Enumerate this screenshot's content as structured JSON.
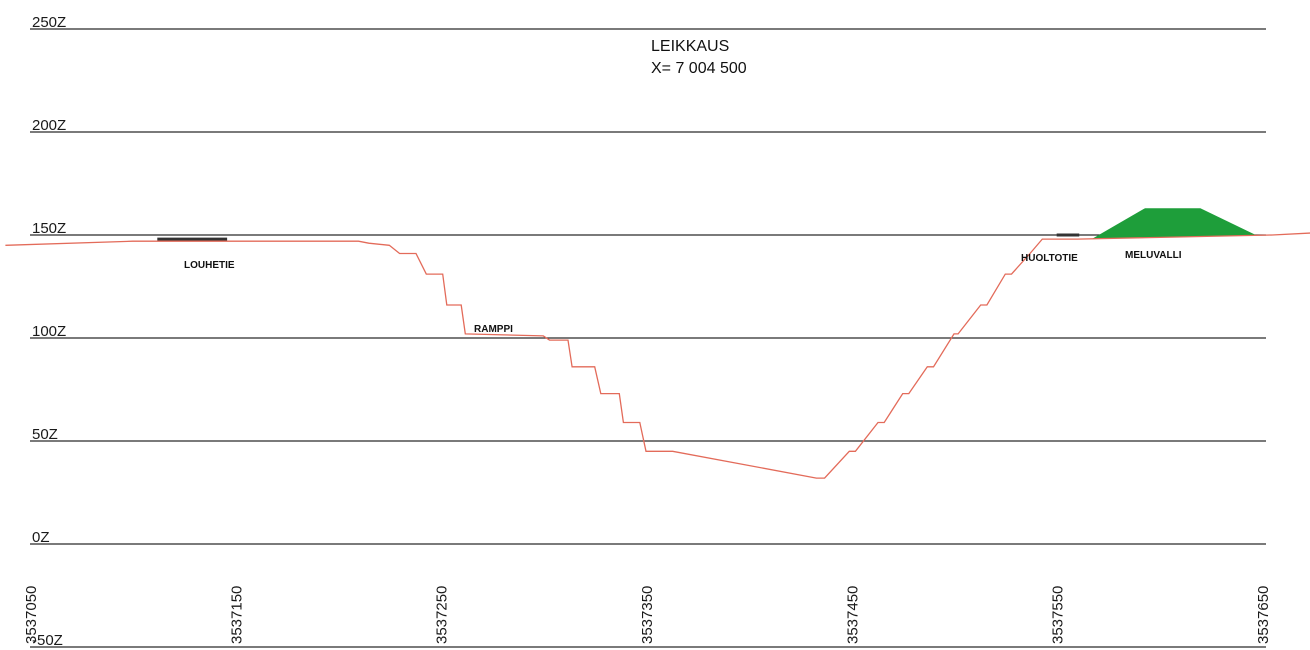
{
  "title": {
    "line1": "LEIKKAUS",
    "line2": "X= 7 004 500"
  },
  "colors": {
    "grid": "#2b2b2b",
    "profile": "#e36b5a",
    "noise_barrier": "#1e9e3a",
    "road": "#333333"
  },
  "chart_data": {
    "type": "line",
    "x_axis_labels": [
      "3537050",
      "3537150",
      "3537250",
      "3537350",
      "3537450",
      "3537550",
      "3537650"
    ],
    "x_range": [
      3537050,
      3537650
    ],
    "z_axis_labels": [
      "250Z",
      "200Z",
      "150Z",
      "100Z",
      "50Z",
      "0Z",
      "-50Z"
    ],
    "z_levels": [
      250,
      200,
      150,
      100,
      50,
      0,
      -50
    ],
    "z_range": [
      -50,
      250
    ],
    "profile": {
      "x": [
        3537038,
        3537100,
        3537190,
        3537200,
        3537210,
        3537215,
        3537225,
        3537230,
        3537238,
        3537243,
        3537251,
        3537253,
        3537260,
        3537262,
        3537300,
        3537303,
        3537312,
        3537314,
        3537325,
        3537328,
        3537337,
        3537339,
        3537347,
        3537350,
        3537363,
        3537433,
        3537437,
        3537449,
        3537452,
        3537463,
        3537466,
        3537475,
        3537478,
        3537487,
        3537490,
        3537500,
        3537502,
        3537513,
        3537516,
        3537525,
        3537528,
        3537537,
        3537543,
        3537560,
        3537655,
        3537675
      ],
      "z": [
        145,
        147,
        147,
        147,
        147,
        146,
        145,
        141,
        141,
        131,
        131,
        116,
        116,
        102,
        101,
        99,
        99,
        86,
        86,
        73,
        73,
        59,
        59,
        45,
        45,
        32,
        32,
        45,
        45,
        59,
        59,
        73,
        73,
        86,
        86,
        102,
        102,
        116,
        116,
        131,
        131,
        141,
        148,
        148,
        150,
        151
      ]
    },
    "annotations": [
      "LOUHETIE",
      "RAMPPI",
      "HUOLTOTIE",
      "MELUVALLI"
    ],
    "noise_barrier": {
      "x": [
        3537567,
        3537593,
        3537620,
        3537647,
        3537567
      ],
      "z": [
        148,
        163,
        163,
        150,
        148
      ]
    },
    "roads": [
      {
        "x1": 3537112,
        "x2": 3537146,
        "z": 148
      },
      {
        "x1": 3537550,
        "x2": 3537561,
        "z": 150
      }
    ]
  }
}
